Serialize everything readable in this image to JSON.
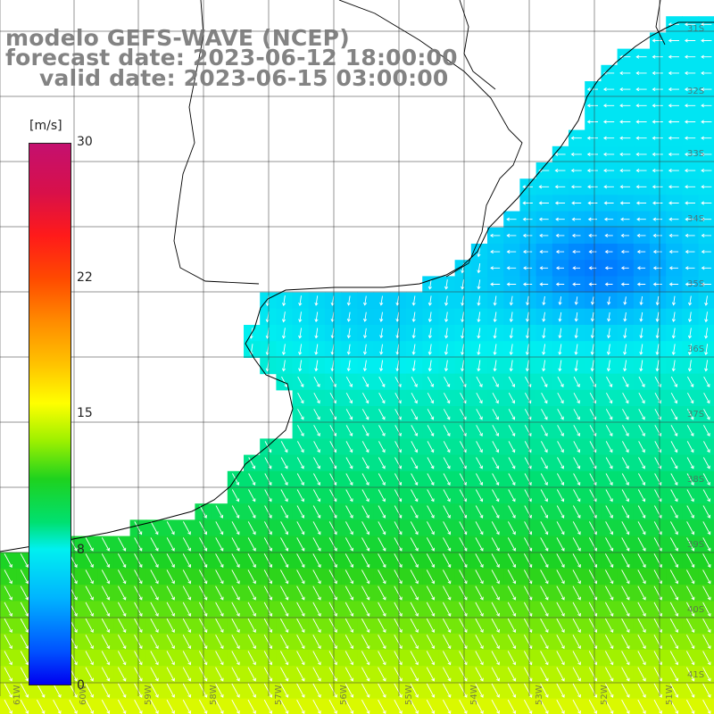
{
  "title": {
    "line1": "modelo GEFS-WAVE (NCEP)",
    "line2": "forecast date: 2023-06-12 18:00:00",
    "line3": "valid date: 2023-06-15 03:00:00"
  },
  "colorbar": {
    "unit": "[m/s]",
    "ticks": [
      "30",
      "22",
      "15",
      "8",
      "0"
    ],
    "tick_values": [
      30,
      22,
      15,
      8,
      0
    ],
    "min": 0,
    "max": 30,
    "colors": [
      "#0000f0",
      "#0050ff",
      "#00b4ff",
      "#00f0f0",
      "#00e070",
      "#1ed21e",
      "#9cf000",
      "#ffff00",
      "#ffc400",
      "#ff8c00",
      "#ff4a00",
      "#ff1a1a",
      "#d8104a",
      "#c4106f"
    ]
  },
  "axes": {
    "lon_labels": [
      "61W",
      "60W",
      "59W",
      "58W",
      "57W",
      "56W",
      "55W",
      "54W",
      "53W",
      "52W",
      "51W"
    ],
    "lat_labels": [
      "31S",
      "32S",
      "33S",
      "34S",
      "35S",
      "36S",
      "37S",
      "38S",
      "39S",
      "40S",
      "41S"
    ],
    "grid": true
  },
  "map": {
    "variable": "wind speed",
    "land_color": "#ffffff",
    "coastline_color": "#000000",
    "arrow_color": "#ffffff"
  }
}
